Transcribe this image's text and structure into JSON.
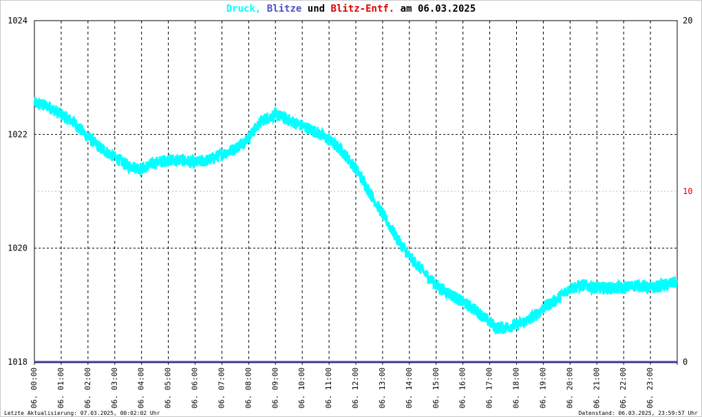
{
  "title": {
    "part1": "Druck,",
    "part2": "Blitze",
    "part3": "und",
    "part4": "Blitz-Entf.",
    "part5": "am 06.03.2025"
  },
  "colors": {
    "pressure": "#00ffff",
    "lightning": "#5050c8",
    "distance": "#e00000",
    "text": "#000000"
  },
  "footer": {
    "left": "Letzte Aktualisierung: 07.03.2025, 00:02:02 Uhr",
    "right": "Datenstand: 06.03.2025, 23:59:57 Uhr"
  },
  "chart_data": {
    "type": "line",
    "title": "Druck, Blitze und Blitz-Entf. am 06.03.2025",
    "xlabel": "",
    "ylabel": "",
    "y_left": {
      "ticks": [
        1018,
        1020,
        1022,
        1024
      ],
      "ylim": [
        1018,
        1024
      ]
    },
    "y_right": {
      "ticks": [
        0,
        10,
        20
      ],
      "ylim": [
        0,
        20
      ]
    },
    "x_ticks": [
      "06. 00:00",
      "06. 01:00",
      "06. 02:00",
      "06. 03:00",
      "06. 04:00",
      "06. 05:00",
      "06. 06:00",
      "06. 07:00",
      "06. 08:00",
      "06. 09:00",
      "06. 10:00",
      "06. 11:00",
      "06. 12:00",
      "06. 13:00",
      "06. 14:00",
      "06. 15:00",
      "06. 16:00",
      "06. 17:00",
      "06. 18:00",
      "06. 19:00",
      "06. 20:00",
      "06. 21:00",
      "06. 22:00",
      "06. 23:00"
    ],
    "grid": true,
    "series": [
      {
        "name": "Druck",
        "axis": "left",
        "color": "#00ffff",
        "x": [
          0,
          0.5,
          1,
          1.5,
          2,
          2.5,
          3,
          3.5,
          4,
          4.5,
          5,
          5.5,
          6,
          6.5,
          7,
          7.5,
          8,
          8.5,
          9,
          9.5,
          10,
          10.5,
          11,
          11.5,
          12,
          12.5,
          13,
          13.5,
          14,
          14.5,
          15,
          15.5,
          16,
          16.5,
          17,
          17.25,
          17.5,
          18,
          18.5,
          19,
          19.5,
          20,
          20.5,
          21,
          21.5,
          22,
          22.5,
          23,
          23.5,
          23.98
        ],
        "y": [
          1022.55,
          1022.5,
          1022.35,
          1022.2,
          1021.95,
          1021.75,
          1021.6,
          1021.45,
          1021.4,
          1021.5,
          1021.55,
          1021.55,
          1021.5,
          1021.55,
          1021.65,
          1021.75,
          1021.95,
          1022.25,
          1022.35,
          1022.25,
          1022.15,
          1022.05,
          1021.9,
          1021.7,
          1021.4,
          1021.0,
          1020.6,
          1020.2,
          1019.85,
          1019.6,
          1019.35,
          1019.2,
          1019.05,
          1018.9,
          1018.7,
          1018.6,
          1018.6,
          1018.65,
          1018.75,
          1018.95,
          1019.1,
          1019.3,
          1019.35,
          1019.3,
          1019.3,
          1019.3,
          1019.35,
          1019.3,
          1019.35,
          1019.4
        ]
      },
      {
        "name": "Blitze",
        "axis": "right",
        "color": "#5050c8",
        "x": [
          0,
          24
        ],
        "y": [
          0,
          0
        ]
      },
      {
        "name": "Blitz-Entf.",
        "axis": "right",
        "color": "#e00000",
        "x": [],
        "y": []
      }
    ]
  }
}
